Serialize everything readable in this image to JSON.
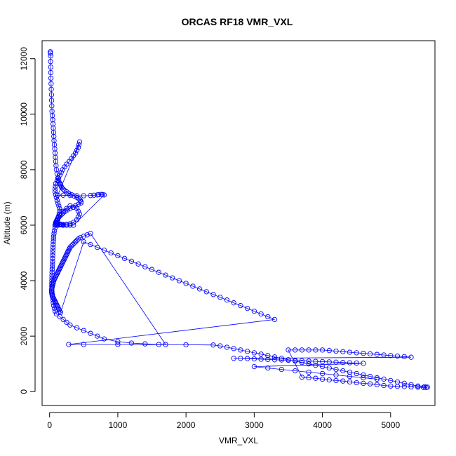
{
  "chart_data": {
    "type": "scatter",
    "title": "ORCAS RF18 VMR_VXL",
    "xlabel": "VMR_VXL",
    "ylabel": "Altitude (m)",
    "xlim": [
      -110,
      5650
    ],
    "ylim": [
      -500,
      12650
    ],
    "xticks": [
      0,
      1000,
      2000,
      3000,
      4000,
      5000
    ],
    "yticks": [
      0,
      2000,
      4000,
      6000,
      8000,
      10000,
      12000
    ],
    "grid": false,
    "legend": "none",
    "marker": "open-circle",
    "connect_points": true,
    "color": "#0000ff",
    "series": [
      {
        "x": [
          10,
          12,
          15,
          14,
          16,
          18,
          20,
          22,
          25,
          28,
          30,
          32,
          35,
          40,
          45,
          50,
          55,
          60,
          62,
          65,
          70,
          75,
          80,
          85,
          90,
          95,
          100,
          110,
          120,
          130,
          140,
          150,
          160,
          170,
          180,
          200,
          220,
          250,
          280,
          320,
          360,
          400,
          430,
          450,
          460,
          460,
          420,
          380,
          340,
          300,
          260,
          230,
          200,
          180,
          160,
          140,
          120,
          110,
          100,
          90,
          85,
          80,
          80,
          80,
          90,
          100,
          120,
          130,
          140,
          150,
          145,
          135,
          120,
          110,
          100,
          90,
          80,
          80,
          85,
          90,
          110,
          130,
          150,
          170,
          190,
          220,
          250,
          290,
          320,
          350,
          380,
          400,
          420,
          430,
          440,
          120,
          200,
          300,
          400,
          500,
          600,
          650,
          700,
          720,
          760,
          780,
          800,
          350,
          300,
          250,
          200,
          180,
          170,
          160,
          150,
          120,
          110,
          100,
          100,
          110,
          130,
          150,
          200,
          250,
          300,
          350,
          400,
          420,
          440,
          420,
          400,
          350,
          300,
          250,
          200,
          150,
          120,
          100,
          80,
          70,
          65,
          60,
          58,
          55,
          52,
          50,
          48,
          46,
          45,
          44,
          43,
          42,
          40,
          38,
          36,
          35,
          34,
          33,
          32,
          32,
          33,
          35,
          40,
          45,
          50,
          55,
          60,
          70,
          80,
          100,
          150,
          200,
          250,
          300,
          400,
          500,
          600,
          700,
          800,
          1000,
          1200,
          1400,
          1600,
          1700,
          600,
          550,
          500,
          450,
          420,
          400,
          380,
          360,
          340,
          320,
          300,
          290,
          280,
          270,
          260,
          250,
          240,
          230,
          220,
          210,
          200,
          190,
          180,
          170,
          160,
          150,
          140,
          130,
          120,
          110,
          100,
          90,
          80,
          70,
          60,
          55,
          50,
          45,
          40,
          35,
          32,
          30,
          30,
          32,
          35,
          40,
          50,
          60,
          70,
          80,
          90,
          100,
          110,
          120,
          130,
          140,
          150,
          160,
          500,
          600,
          700,
          800,
          900,
          1000,
          1100,
          1200,
          1300,
          1400,
          1500,
          1600,
          1700,
          1800,
          1900,
          2000,
          2100,
          2200,
          2300,
          2400,
          2500,
          2600,
          2700,
          2800,
          2900,
          3000,
          3100,
          3200,
          3300,
          280,
          500,
          1000,
          2000,
          2400,
          2500,
          2600,
          2700,
          2800,
          2900,
          3000,
          3100,
          3200,
          3300,
          3400,
          3500,
          3600,
          3700,
          3800,
          3900,
          4000,
          4100,
          4200,
          4300,
          4400,
          4500,
          4600,
          4700,
          4800,
          4900,
          5000,
          5100,
          5200,
          5300,
          5400,
          5500,
          5540,
          5520,
          5480,
          5400,
          5300,
          5200,
          5100,
          5000,
          4900,
          4800,
          4700,
          4600,
          4500,
          4400,
          4300,
          4200,
          4100,
          4000,
          3900,
          3800,
          3700,
          3500,
          3600,
          3700,
          3800,
          3900,
          4000,
          4100,
          4200,
          4300,
          4400,
          4500,
          4600,
          4700,
          4800,
          4900,
          5000,
          5100,
          5200,
          5300,
          2700,
          2800,
          2900,
          3000,
          3100,
          3200,
          3300,
          3400,
          3500,
          3600,
          3700,
          3800,
          3900,
          4000,
          4100,
          4200,
          4300,
          4400,
          4500,
          4600,
          3000,
          3200,
          3400,
          3600,
          3800,
          4000,
          4200,
          4400,
          4600,
          4800
        ],
        "y": [
          12250,
          12200,
          12100,
          11900,
          11700,
          11500,
          11300,
          11100,
          10900,
          10700,
          10500,
          10300,
          10100,
          9950,
          9800,
          9650,
          9500,
          9350,
          9200,
          9050,
          8900,
          8750,
          8600,
          8450,
          8300,
          8150,
          8000,
          7850,
          7700,
          7600,
          7550,
          7500,
          7450,
          7400,
          7350,
          7300,
          7250,
          7200,
          7150,
          7100,
          7050,
          7000,
          6950,
          6900,
          6850,
          6800,
          6750,
          6700,
          6650,
          6600,
          6550,
          6500,
          6450,
          6400,
          6350,
          6300,
          6250,
          6200,
          6150,
          6100,
          6050,
          6000,
          6000,
          6000,
          6050,
          6100,
          6200,
          6300,
          6400,
          6500,
          6600,
          6700,
          6800,
          6900,
          7000,
          7100,
          7200,
          7300,
          7400,
          7500,
          7600,
          7700,
          7800,
          7900,
          8000,
          8100,
          8200,
          8300,
          8400,
          8500,
          8600,
          8700,
          8800,
          8900,
          9000,
          7080,
          7080,
          7070,
          7060,
          7060,
          7070,
          7080,
          7090,
          7100,
          7110,
          7100,
          7090,
          6000,
          6000,
          6000,
          6000,
          6010,
          6020,
          6030,
          6040,
          6050,
          6060,
          6070,
          6100,
          6200,
          6300,
          6400,
          6500,
          6600,
          6700,
          6650,
          6600,
          6500,
          6400,
          6300,
          6200,
          6100,
          6050,
          6030,
          6020,
          6010,
          6000,
          6000,
          5900,
          5800,
          5700,
          5600,
          5500,
          5400,
          5300,
          5200,
          5100,
          5000,
          4900,
          4800,
          4700,
          4600,
          4500,
          4400,
          4300,
          4200,
          4100,
          4000,
          3900,
          3800,
          3700,
          3600,
          3500,
          3400,
          3300,
          3200,
          3100,
          3000,
          2900,
          2800,
          2700,
          2600,
          2500,
          2400,
          2300,
          2200,
          2100,
          2000,
          1900,
          1800,
          1750,
          1720,
          1700,
          1700,
          5700,
          5650,
          5600,
          5550,
          5500,
          5450,
          5400,
          5350,
          5300,
          5250,
          5200,
          5150,
          5100,
          5050,
          5000,
          4950,
          4900,
          4850,
          4800,
          4750,
          4700,
          4650,
          4600,
          4550,
          4500,
          4450,
          4400,
          4350,
          4300,
          4250,
          4200,
          4150,
          4100,
          4050,
          4000,
          3950,
          3900,
          3850,
          3800,
          3750,
          3700,
          3650,
          3600,
          3550,
          3500,
          3450,
          3400,
          3350,
          3300,
          3250,
          3200,
          3150,
          3100,
          3050,
          3000,
          2950,
          2900,
          2850,
          5400,
          5300,
          5200,
          5100,
          5000,
          4900,
          4800,
          4700,
          4600,
          4500,
          4400,
          4300,
          4200,
          4100,
          4000,
          3900,
          3800,
          3700,
          3600,
          3500,
          3400,
          3300,
          3200,
          3100,
          3000,
          2900,
          2800,
          2700,
          2600,
          1700,
          1700,
          1700,
          1690,
          1680,
          1650,
          1600,
          1550,
          1500,
          1450,
          1400,
          1350,
          1300,
          1250,
          1200,
          1150,
          1100,
          1050,
          1000,
          950,
          900,
          850,
          800,
          750,
          700,
          650,
          600,
          550,
          500,
          450,
          400,
          350,
          300,
          250,
          200,
          180,
          160,
          150,
          150,
          160,
          170,
          180,
          190,
          200,
          220,
          250,
          280,
          300,
          320,
          350,
          380,
          400,
          420,
          450,
          480,
          500,
          520,
          1500,
          1500,
          1500,
          1500,
          1500,
          1500,
          1480,
          1460,
          1440,
          1420,
          1400,
          1380,
          1360,
          1340,
          1320,
          1300,
          1280,
          1260,
          1240,
          1200,
          1200,
          1190,
          1180,
          1170,
          1160,
          1150,
          1140,
          1130,
          1120,
          1110,
          1100,
          1090,
          1080,
          1070,
          1060,
          1050,
          1040,
          1030,
          1020,
          900,
          850,
          800,
          750,
          700,
          650,
          600,
          550,
          500,
          450
        ]
      }
    ]
  }
}
